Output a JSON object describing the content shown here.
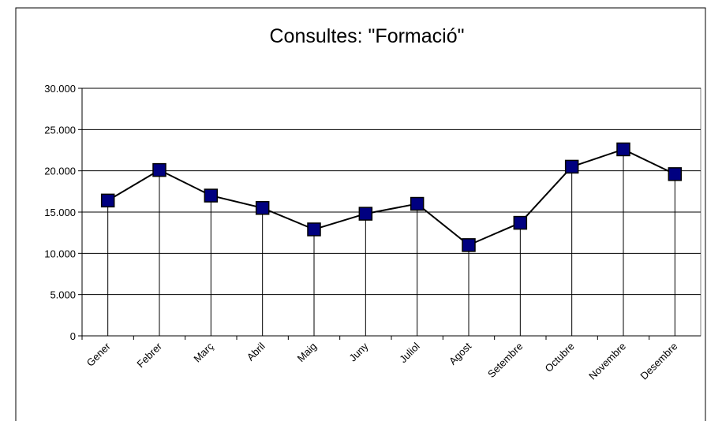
{
  "chart_data": {
    "type": "line",
    "title": "Consultes: \"Formació\"",
    "categories": [
      "Gener",
      "Febrer",
      "Març",
      "Abril",
      "Maig",
      "Juny",
      "Juliol",
      "Agost",
      "Setembre",
      "Octubre",
      "Novembre",
      "Desembre"
    ],
    "values": [
      16400,
      20100,
      17000,
      15500,
      12900,
      14800,
      16000,
      11000,
      13700,
      20500,
      22600,
      19600
    ],
    "color": "#000080",
    "drop_lines": true,
    "ylim": [
      0,
      30000
    ],
    "yticks": [
      0,
      {
        "value": 5000,
        "label": "5.000"
      },
      {
        "value": 10000,
        "label": "10.000"
      },
      {
        "value": 15000,
        "label": "15.000"
      },
      {
        "value": 20000,
        "label": "20.000"
      },
      {
        "value": 25000,
        "label": "25.000"
      },
      {
        "value": 30000,
        "label": "30.000"
      }
    ],
    "grid": true
  }
}
